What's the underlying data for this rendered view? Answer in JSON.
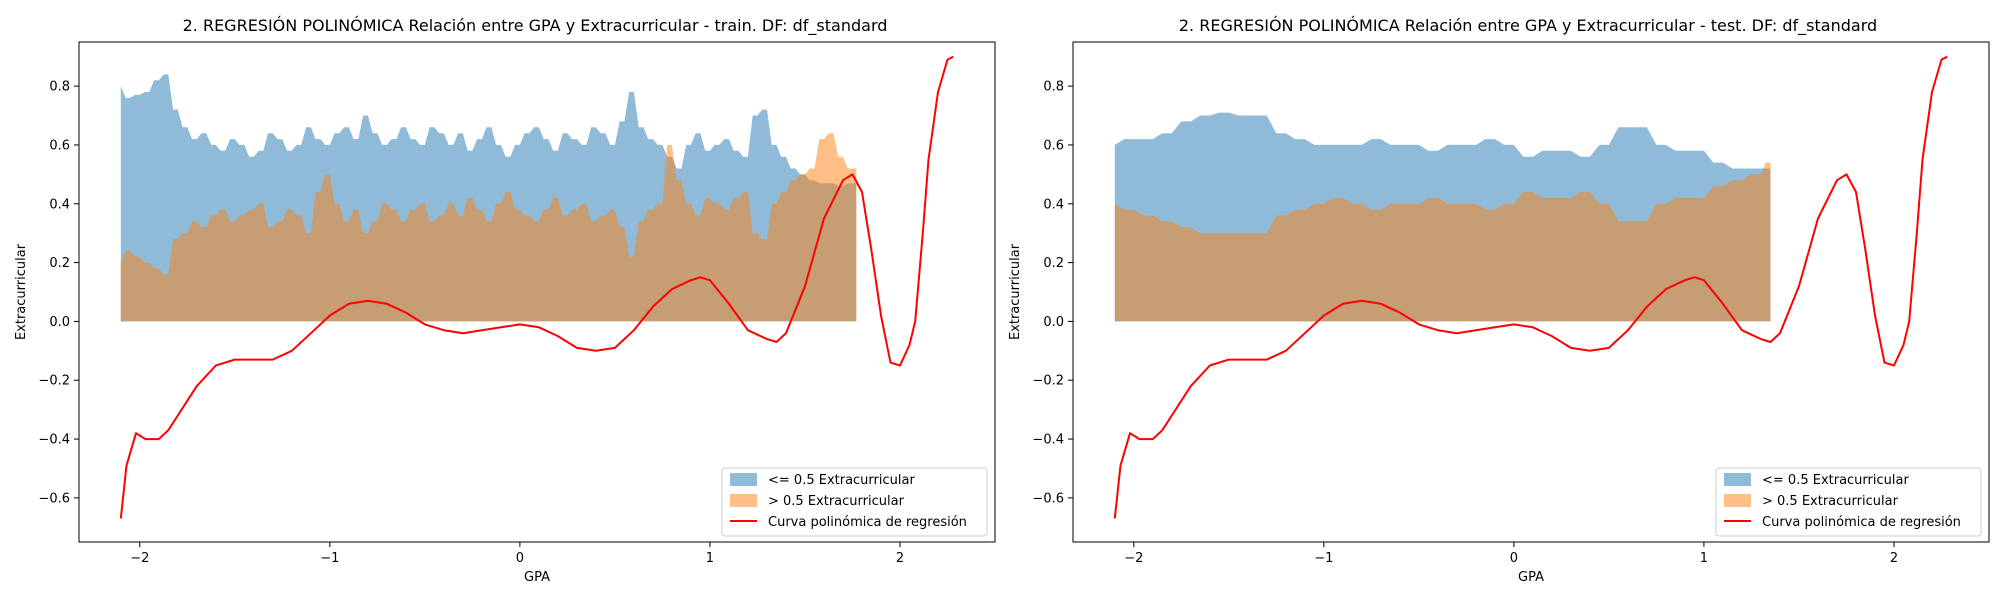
{
  "chart_data": [
    {
      "type": "area",
      "title": "2. REGRESIÓN POLINÓMICA Relación entre GPA y Extracurricular - train. DF: df_standard",
      "xlabel": "GPA",
      "ylabel": "Extracurricular",
      "xlim": [
        -2.32,
        2.5
      ],
      "ylim": [
        -0.75,
        0.95
      ],
      "xticks": [
        -2,
        -1,
        0,
        1,
        2
      ],
      "xtick_labels": [
        "−2",
        "−1",
        "0",
        "1",
        "2"
      ],
      "yticks": [
        -0.6,
        -0.4,
        -0.2,
        0.0,
        0.2,
        0.4,
        0.6,
        0.8
      ],
      "ytick_labels": [
        "−0.6",
        "−0.4",
        "−0.2",
        "0.0",
        "0.2",
        "0.4",
        "0.6",
        "0.8"
      ],
      "grid": false,
      "legend_position": "lower-right",
      "series": [
        {
          "name": "<= 0.5 Extracurricular",
          "kind": "area",
          "color": "#1f77b4",
          "opacity": 0.5,
          "x": [
            -2.1,
            -2.05,
            -2.0,
            -1.95,
            -1.9,
            -1.85,
            -1.8,
            -1.75,
            -1.7,
            -1.65,
            -1.6,
            -1.55,
            -1.5,
            -1.45,
            -1.4,
            -1.35,
            -1.3,
            -1.25,
            -1.2,
            -1.15,
            -1.1,
            -1.05,
            -1.0,
            -0.95,
            -0.9,
            -0.85,
            -0.8,
            -0.75,
            -0.7,
            -0.65,
            -0.6,
            -0.55,
            -0.5,
            -0.45,
            -0.4,
            -0.35,
            -0.3,
            -0.25,
            -0.2,
            -0.15,
            -0.1,
            -0.05,
            0.0,
            0.05,
            0.1,
            0.15,
            0.2,
            0.25,
            0.3,
            0.35,
            0.4,
            0.45,
            0.5,
            0.55,
            0.6,
            0.65,
            0.7,
            0.75,
            0.8,
            0.85,
            0.9,
            0.95,
            1.0,
            1.05,
            1.1,
            1.15,
            1.2,
            1.25,
            1.3,
            1.35,
            1.4,
            1.45,
            1.5,
            1.55,
            1.6,
            1.65,
            1.7,
            1.75,
            1.77
          ],
          "values": [
            0.8,
            0.76,
            0.77,
            0.78,
            0.82,
            0.84,
            0.72,
            0.66,
            0.62,
            0.64,
            0.6,
            0.58,
            0.62,
            0.6,
            0.56,
            0.58,
            0.64,
            0.62,
            0.58,
            0.6,
            0.66,
            0.62,
            0.6,
            0.64,
            0.66,
            0.62,
            0.7,
            0.64,
            0.6,
            0.62,
            0.66,
            0.62,
            0.6,
            0.66,
            0.64,
            0.6,
            0.64,
            0.58,
            0.62,
            0.66,
            0.6,
            0.56,
            0.6,
            0.64,
            0.66,
            0.62,
            0.58,
            0.64,
            0.62,
            0.6,
            0.66,
            0.64,
            0.6,
            0.68,
            0.78,
            0.66,
            0.62,
            0.6,
            0.56,
            0.52,
            0.6,
            0.64,
            0.58,
            0.6,
            0.62,
            0.58,
            0.56,
            0.7,
            0.72,
            0.6,
            0.56,
            0.52,
            0.5,
            0.48,
            0.47,
            0.47,
            0.46,
            0.47,
            0.47
          ]
        },
        {
          "name": "> 0.5 Extracurricular",
          "kind": "area",
          "color": "#ff7f0e",
          "opacity": 0.5,
          "x": [
            -2.1,
            -2.05,
            -2.0,
            -1.95,
            -1.9,
            -1.85,
            -1.8,
            -1.75,
            -1.7,
            -1.65,
            -1.6,
            -1.55,
            -1.5,
            -1.45,
            -1.4,
            -1.35,
            -1.3,
            -1.25,
            -1.2,
            -1.15,
            -1.1,
            -1.05,
            -1.0,
            -0.95,
            -0.9,
            -0.85,
            -0.8,
            -0.75,
            -0.7,
            -0.65,
            -0.6,
            -0.55,
            -0.5,
            -0.45,
            -0.4,
            -0.35,
            -0.3,
            -0.25,
            -0.2,
            -0.15,
            -0.1,
            -0.05,
            0.0,
            0.05,
            0.1,
            0.15,
            0.2,
            0.25,
            0.3,
            0.35,
            0.4,
            0.45,
            0.5,
            0.55,
            0.6,
            0.65,
            0.7,
            0.75,
            0.8,
            0.85,
            0.9,
            0.95,
            1.0,
            1.05,
            1.1,
            1.15,
            1.2,
            1.25,
            1.3,
            1.35,
            1.4,
            1.45,
            1.5,
            1.55,
            1.6,
            1.65,
            1.7,
            1.75,
            1.77
          ],
          "values": [
            0.2,
            0.24,
            0.22,
            0.2,
            0.18,
            0.16,
            0.28,
            0.3,
            0.34,
            0.32,
            0.36,
            0.38,
            0.34,
            0.36,
            0.38,
            0.4,
            0.32,
            0.34,
            0.38,
            0.36,
            0.3,
            0.44,
            0.5,
            0.4,
            0.34,
            0.38,
            0.3,
            0.34,
            0.4,
            0.38,
            0.34,
            0.38,
            0.4,
            0.34,
            0.36,
            0.4,
            0.36,
            0.42,
            0.38,
            0.34,
            0.4,
            0.44,
            0.38,
            0.36,
            0.34,
            0.38,
            0.42,
            0.36,
            0.38,
            0.4,
            0.34,
            0.36,
            0.38,
            0.32,
            0.22,
            0.34,
            0.38,
            0.4,
            0.6,
            0.48,
            0.4,
            0.36,
            0.42,
            0.4,
            0.38,
            0.42,
            0.44,
            0.3,
            0.28,
            0.4,
            0.44,
            0.48,
            0.5,
            0.52,
            0.62,
            0.64,
            0.56,
            0.52,
            0.52
          ]
        },
        {
          "name": "Curva polinómica de regresión",
          "kind": "line",
          "color": "#ff0000",
          "x": [
            -2.1,
            -2.07,
            -2.02,
            -1.97,
            -1.9,
            -1.85,
            -1.8,
            -1.7,
            -1.6,
            -1.5,
            -1.4,
            -1.3,
            -1.2,
            -1.1,
            -1.0,
            -0.9,
            -0.8,
            -0.7,
            -0.6,
            -0.5,
            -0.4,
            -0.3,
            -0.2,
            -0.1,
            0.0,
            0.1,
            0.2,
            0.3,
            0.4,
            0.5,
            0.6,
            0.7,
            0.8,
            0.9,
            0.95,
            1.0,
            1.1,
            1.2,
            1.3,
            1.35,
            1.4,
            1.5,
            1.6,
            1.7,
            1.75,
            1.8,
            1.85,
            1.9,
            1.95,
            2.0,
            2.05,
            2.08,
            2.12,
            2.15,
            2.2,
            2.25,
            2.28
          ],
          "values": [
            -0.67,
            -0.49,
            -0.38,
            -0.4,
            -0.4,
            -0.37,
            -0.32,
            -0.22,
            -0.15,
            -0.13,
            -0.13,
            -0.13,
            -0.1,
            -0.04,
            0.02,
            0.06,
            0.07,
            0.06,
            0.03,
            -0.01,
            -0.03,
            -0.04,
            -0.03,
            -0.02,
            -0.01,
            -0.02,
            -0.05,
            -0.09,
            -0.1,
            -0.09,
            -0.03,
            0.05,
            0.11,
            0.14,
            0.15,
            0.14,
            0.06,
            -0.03,
            -0.06,
            -0.07,
            -0.04,
            0.12,
            0.35,
            0.48,
            0.5,
            0.44,
            0.24,
            0.02,
            -0.14,
            -0.15,
            -0.08,
            0.0,
            0.3,
            0.55,
            0.78,
            0.89,
            0.9
          ]
        }
      ]
    },
    {
      "type": "area",
      "title": "2. REGRESIÓN POLINÓMICA Relación entre GPA y Extracurricular - test. DF: df_standard",
      "xlabel": "GPA",
      "ylabel": "Extracurricular",
      "xlim": [
        -2.32,
        2.5
      ],
      "ylim": [
        -0.75,
        0.95
      ],
      "xticks": [
        -2,
        -1,
        0,
        1,
        2
      ],
      "xtick_labels": [
        "−2",
        "−1",
        "0",
        "1",
        "2"
      ],
      "yticks": [
        -0.6,
        -0.4,
        -0.2,
        0.0,
        0.2,
        0.4,
        0.6,
        0.8
      ],
      "ytick_labels": [
        "−0.6",
        "−0.4",
        "−0.2",
        "0.0",
        "0.2",
        "0.4",
        "0.6",
        "0.8"
      ],
      "grid": false,
      "legend_position": "lower-right",
      "series": [
        {
          "name": "<= 0.5 Extracurricular",
          "kind": "area",
          "color": "#1f77b4",
          "opacity": 0.5,
          "x": [
            -2.1,
            -2.0,
            -1.9,
            -1.8,
            -1.7,
            -1.6,
            -1.5,
            -1.4,
            -1.3,
            -1.2,
            -1.1,
            -1.0,
            -0.9,
            -0.8,
            -0.7,
            -0.6,
            -0.5,
            -0.4,
            -0.3,
            -0.2,
            -0.1,
            0.0,
            0.1,
            0.2,
            0.3,
            0.4,
            0.5,
            0.6,
            0.7,
            0.8,
            0.9,
            1.0,
            1.1,
            1.2,
            1.3,
            1.35
          ],
          "values": [
            0.6,
            0.62,
            0.62,
            0.64,
            0.68,
            0.7,
            0.71,
            0.7,
            0.7,
            0.64,
            0.62,
            0.6,
            0.6,
            0.6,
            0.62,
            0.6,
            0.6,
            0.58,
            0.6,
            0.6,
            0.62,
            0.6,
            0.56,
            0.58,
            0.58,
            0.56,
            0.6,
            0.66,
            0.66,
            0.6,
            0.58,
            0.58,
            0.54,
            0.52,
            0.52,
            0.52
          ]
        },
        {
          "name": "> 0.5 Extracurricular",
          "kind": "area",
          "color": "#ff7f0e",
          "opacity": 0.5,
          "x": [
            -2.1,
            -2.0,
            -1.9,
            -1.8,
            -1.7,
            -1.6,
            -1.5,
            -1.4,
            -1.3,
            -1.2,
            -1.1,
            -1.0,
            -0.9,
            -0.8,
            -0.7,
            -0.6,
            -0.5,
            -0.4,
            -0.3,
            -0.2,
            -0.1,
            0.0,
            0.1,
            0.2,
            0.3,
            0.4,
            0.5,
            0.6,
            0.7,
            0.8,
            0.9,
            1.0,
            1.1,
            1.2,
            1.3,
            1.35
          ],
          "values": [
            0.4,
            0.38,
            0.36,
            0.34,
            0.32,
            0.3,
            0.3,
            0.3,
            0.3,
            0.36,
            0.38,
            0.4,
            0.42,
            0.4,
            0.38,
            0.4,
            0.4,
            0.42,
            0.4,
            0.4,
            0.38,
            0.4,
            0.44,
            0.42,
            0.42,
            0.44,
            0.4,
            0.34,
            0.34,
            0.4,
            0.42,
            0.42,
            0.46,
            0.48,
            0.5,
            0.54
          ]
        },
        {
          "name": "Curva polinómica de regresión",
          "kind": "line",
          "color": "#ff0000",
          "x": [
            -2.1,
            -2.07,
            -2.02,
            -1.97,
            -1.9,
            -1.85,
            -1.8,
            -1.7,
            -1.6,
            -1.5,
            -1.4,
            -1.3,
            -1.2,
            -1.1,
            -1.0,
            -0.9,
            -0.8,
            -0.7,
            -0.6,
            -0.5,
            -0.4,
            -0.3,
            -0.2,
            -0.1,
            0.0,
            0.1,
            0.2,
            0.3,
            0.4,
            0.5,
            0.6,
            0.7,
            0.8,
            0.9,
            0.95,
            1.0,
            1.1,
            1.2,
            1.3,
            1.35,
            1.4,
            1.5,
            1.6,
            1.7,
            1.75,
            1.8,
            1.85,
            1.9,
            1.95,
            2.0,
            2.05,
            2.08,
            2.12,
            2.15,
            2.2,
            2.25,
            2.28
          ],
          "values": [
            -0.67,
            -0.49,
            -0.38,
            -0.4,
            -0.4,
            -0.37,
            -0.32,
            -0.22,
            -0.15,
            -0.13,
            -0.13,
            -0.13,
            -0.1,
            -0.04,
            0.02,
            0.06,
            0.07,
            0.06,
            0.03,
            -0.01,
            -0.03,
            -0.04,
            -0.03,
            -0.02,
            -0.01,
            -0.02,
            -0.05,
            -0.09,
            -0.1,
            -0.09,
            -0.03,
            0.05,
            0.11,
            0.14,
            0.15,
            0.14,
            0.06,
            -0.03,
            -0.06,
            -0.07,
            -0.04,
            0.12,
            0.35,
            0.48,
            0.5,
            0.44,
            0.24,
            0.02,
            -0.14,
            -0.15,
            -0.08,
            0.0,
            0.3,
            0.55,
            0.78,
            0.89,
            0.9
          ]
        }
      ]
    }
  ]
}
